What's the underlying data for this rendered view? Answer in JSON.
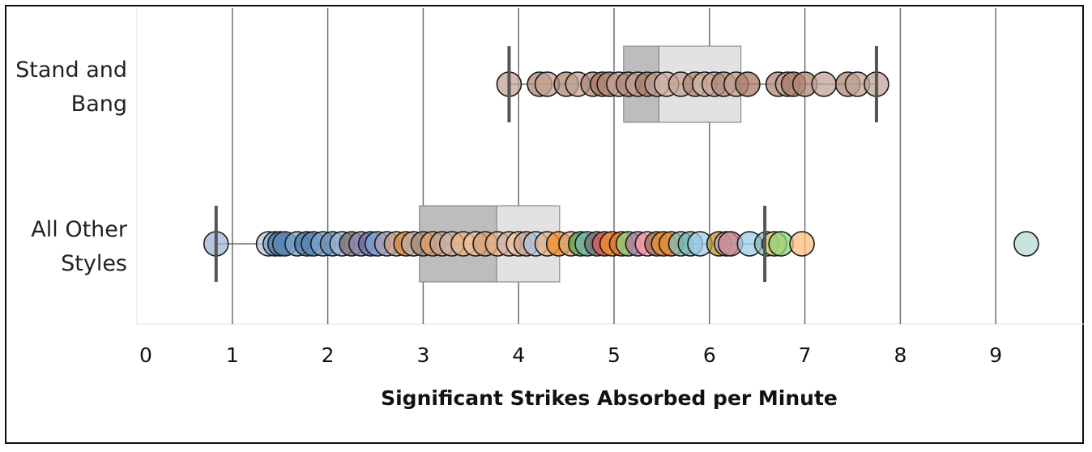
{
  "chart_data": {
    "type": "scatter",
    "subtype": "box-and-whisker jitter strip plot",
    "title": "",
    "xlabel": "Significant Strikes Absorbed per Minute",
    "ylabel": "",
    "xlim": [
      0,
      9.9
    ],
    "xticks": [
      "0",
      "1",
      "2",
      "3",
      "4",
      "5",
      "6",
      "7",
      "8",
      "9"
    ],
    "grid": "vertical",
    "categories": [
      {
        "label_lines": [
          "Stand and",
          "Bang"
        ],
        "box": {
          "whisker_low": 3.9,
          "q1": 5.1,
          "median": 5.47,
          "q3": 6.33,
          "whisker_high": 7.75
        },
        "points": [
          {
            "x": 3.9,
            "color": "#c2a394"
          },
          {
            "x": 4.22,
            "color": "#b08876"
          },
          {
            "x": 4.3,
            "color": "#c2a394"
          },
          {
            "x": 4.5,
            "color": "#b08876"
          },
          {
            "x": 4.62,
            "color": "#c2a394"
          },
          {
            "x": 4.78,
            "color": "#b08876"
          },
          {
            "x": 4.88,
            "color": "#a87a66"
          },
          {
            "x": 4.95,
            "color": "#b08876"
          },
          {
            "x": 5.05,
            "color": "#c2a394"
          },
          {
            "x": 5.15,
            "color": "#b08876"
          },
          {
            "x": 5.25,
            "color": "#c2a394"
          },
          {
            "x": 5.35,
            "color": "#a87a66"
          },
          {
            "x": 5.45,
            "color": "#c2a394"
          },
          {
            "x": 5.55,
            "color": "#d0b4a6"
          },
          {
            "x": 5.7,
            "color": "#c2a394"
          },
          {
            "x": 5.85,
            "color": "#b08876"
          },
          {
            "x": 5.95,
            "color": "#d0b4a6"
          },
          {
            "x": 6.05,
            "color": "#c2a394"
          },
          {
            "x": 6.15,
            "color": "#b08876"
          },
          {
            "x": 6.28,
            "color": "#c2a394"
          },
          {
            "x": 6.4,
            "color": "#a87a66"
          },
          {
            "x": 6.72,
            "color": "#b08876"
          },
          {
            "x": 6.82,
            "color": "#c2a394"
          },
          {
            "x": 6.88,
            "color": "#a87a66"
          },
          {
            "x": 7.0,
            "color": "#b08876"
          },
          {
            "x": 7.2,
            "color": "#c2a394"
          },
          {
            "x": 7.45,
            "color": "#b08876"
          },
          {
            "x": 7.55,
            "color": "#c2a394"
          },
          {
            "x": 7.75,
            "color": "#c2a394"
          }
        ]
      },
      {
        "label_lines": [
          "All Other",
          "Styles"
        ],
        "box": {
          "whisker_low": 0.83,
          "q1": 2.96,
          "median": 3.77,
          "q3": 4.43,
          "whisker_high": 6.58
        },
        "points": [
          {
            "x": 0.83,
            "color": "#9db4d4"
          },
          {
            "x": 1.38,
            "color": "#b4c6de"
          },
          {
            "x": 1.45,
            "color": "#7ea3cc"
          },
          {
            "x": 1.5,
            "color": "#4e79a7"
          },
          {
            "x": 1.55,
            "color": "#5a86b8"
          },
          {
            "x": 1.68,
            "color": "#7ea3cc"
          },
          {
            "x": 1.78,
            "color": "#4e79a7"
          },
          {
            "x": 1.85,
            "color": "#5a86b8"
          },
          {
            "x": 1.95,
            "color": "#7ea3cc"
          },
          {
            "x": 2.05,
            "color": "#6a8fb9"
          },
          {
            "x": 2.15,
            "color": "#9db4d4"
          },
          {
            "x": 2.25,
            "color": "#79706e"
          },
          {
            "x": 2.35,
            "color": "#8c8ab3"
          },
          {
            "x": 2.45,
            "color": "#6b6ea8"
          },
          {
            "x": 2.52,
            "color": "#7ea3cc"
          },
          {
            "x": 2.62,
            "color": "#a8a0b8"
          },
          {
            "x": 2.72,
            "color": "#c9a28a"
          },
          {
            "x": 2.82,
            "color": "#e08a3c"
          },
          {
            "x": 2.9,
            "color": "#bab0ac"
          },
          {
            "x": 3.0,
            "color": "#a48c7c"
          },
          {
            "x": 3.1,
            "color": "#e8a06a"
          },
          {
            "x": 3.2,
            "color": "#c2a394"
          },
          {
            "x": 3.3,
            "color": "#d0b4a6"
          },
          {
            "x": 3.42,
            "color": "#e8b488"
          },
          {
            "x": 3.55,
            "color": "#f0c29a"
          },
          {
            "x": 3.65,
            "color": "#d4a27a"
          },
          {
            "x": 3.78,
            "color": "#e8b488"
          },
          {
            "x": 3.9,
            "color": "#d0b4a6"
          },
          {
            "x": 4.0,
            "color": "#f4c8a0"
          },
          {
            "x": 4.08,
            "color": "#c2a394"
          },
          {
            "x": 4.18,
            "color": "#b4c6de"
          },
          {
            "x": 4.3,
            "color": "#e8b488"
          },
          {
            "x": 4.42,
            "color": "#f28e2b"
          },
          {
            "x": 4.55,
            "color": "#d9a36c"
          },
          {
            "x": 4.65,
            "color": "#59a14f"
          },
          {
            "x": 4.72,
            "color": "#76b7b2"
          },
          {
            "x": 4.82,
            "color": "#79706e"
          },
          {
            "x": 4.9,
            "color": "#e15759"
          },
          {
            "x": 4.98,
            "color": "#f28e2b"
          },
          {
            "x": 5.08,
            "color": "#e07a2f"
          },
          {
            "x": 5.15,
            "color": "#8cd17d"
          },
          {
            "x": 5.25,
            "color": "#b07aa1"
          },
          {
            "x": 5.35,
            "color": "#ff9da7"
          },
          {
            "x": 5.45,
            "color": "#9c755f"
          },
          {
            "x": 5.52,
            "color": "#f28e2b"
          },
          {
            "x": 5.6,
            "color": "#e08a3c"
          },
          {
            "x": 5.7,
            "color": "#86bcb6"
          },
          {
            "x": 5.8,
            "color": "#76b7b2"
          },
          {
            "x": 5.9,
            "color": "#a0cbe8"
          },
          {
            "x": 6.1,
            "color": "#b6992d"
          },
          {
            "x": 6.18,
            "color": "#d4a6c8"
          },
          {
            "x": 6.22,
            "color": "#c48b8b"
          },
          {
            "x": 6.42,
            "color": "#a0cbe8"
          },
          {
            "x": 6.6,
            "color": "#86bcb6"
          },
          {
            "x": 6.68,
            "color": "#f1ce63"
          },
          {
            "x": 6.75,
            "color": "#8cd17d"
          },
          {
            "x": 6.97,
            "color": "#ffbe7d"
          },
          {
            "x": 9.32,
            "color": "#b6d9d5"
          }
        ]
      }
    ]
  }
}
